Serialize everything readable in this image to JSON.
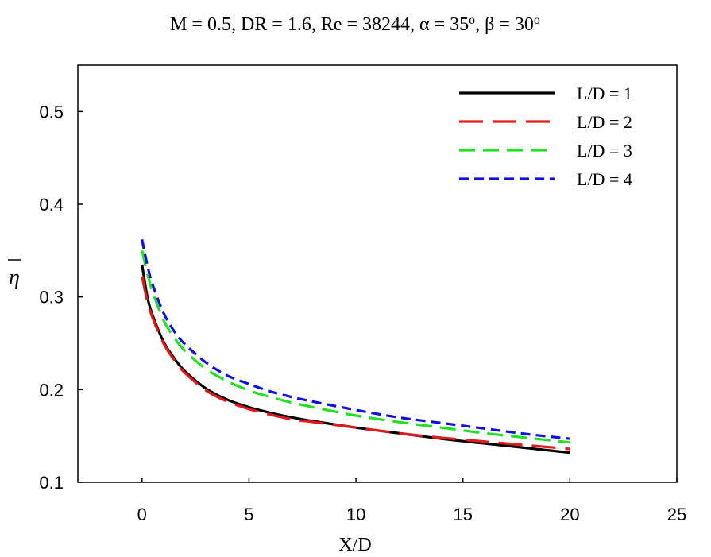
{
  "chart_data": {
    "type": "line",
    "title": {
      "parts": [
        {
          "text": "M = 0.5, DR = 1.6, Re = 38244, ",
          "sup": false
        },
        {
          "text": "α = 35",
          "sup": false
        },
        {
          "text": "o",
          "sup": true
        },
        {
          "text": ", ",
          "sup": false
        },
        {
          "text": "β = 30",
          "sup": false
        },
        {
          "text": "o",
          "sup": true
        }
      ]
    },
    "xlabel": "X/D",
    "ylabel": "η",
    "xlim": [
      -3,
      25
    ],
    "ylim": [
      0.1,
      0.55
    ],
    "xticks": [
      0,
      5,
      10,
      15,
      20,
      25
    ],
    "yticks": [
      0.1,
      0.2,
      0.3,
      0.4,
      0.5
    ],
    "xtick_labels": [
      "0",
      "5",
      "10",
      "15",
      "20",
      "25"
    ],
    "ytick_labels": [
      "0.1",
      "0.2",
      "0.3",
      "0.4",
      "0.5"
    ],
    "grid": false,
    "legend_position": "top-right",
    "series": [
      {
        "name": "L/D = 1",
        "color": "#000000",
        "dash": "solid",
        "x": [
          0,
          0.25,
          0.5,
          1,
          1.5,
          2,
          3,
          4,
          5,
          6,
          7,
          8,
          10,
          12,
          14,
          16,
          18,
          20
        ],
        "y": [
          0.335,
          0.3,
          0.28,
          0.252,
          0.234,
          0.22,
          0.201,
          0.189,
          0.181,
          0.175,
          0.17,
          0.166,
          0.159,
          0.153,
          0.147,
          0.142,
          0.137,
          0.132
        ]
      },
      {
        "name": "L/D = 2",
        "color": "#e31a1c",
        "dash": "long",
        "x": [
          0,
          0.25,
          0.5,
          1,
          1.5,
          2,
          3,
          4,
          5,
          6,
          7,
          8,
          10,
          12,
          14,
          16,
          18,
          20
        ],
        "y": [
          0.322,
          0.295,
          0.277,
          0.25,
          0.232,
          0.218,
          0.199,
          0.187,
          0.179,
          0.173,
          0.168,
          0.165,
          0.159,
          0.153,
          0.148,
          0.144,
          0.14,
          0.136
        ]
      },
      {
        "name": "L/D = 3",
        "color": "#22e022",
        "dash": "medium",
        "x": [
          0,
          0.25,
          0.5,
          1,
          1.5,
          2,
          3,
          4,
          5,
          6,
          7,
          8,
          10,
          12,
          14,
          16,
          18,
          20
        ],
        "y": [
          0.35,
          0.325,
          0.305,
          0.275,
          0.256,
          0.242,
          0.222,
          0.209,
          0.199,
          0.192,
          0.186,
          0.181,
          0.172,
          0.165,
          0.159,
          0.153,
          0.148,
          0.143
        ]
      },
      {
        "name": "L/D = 4",
        "color": "#1010e0",
        "dash": "short",
        "x": [
          0,
          0.25,
          0.5,
          1,
          1.5,
          2,
          3,
          4,
          5,
          6,
          7,
          8,
          10,
          12,
          14,
          16,
          18,
          20
        ],
        "y": [
          0.362,
          0.334,
          0.313,
          0.283,
          0.263,
          0.249,
          0.229,
          0.215,
          0.206,
          0.198,
          0.192,
          0.187,
          0.178,
          0.17,
          0.164,
          0.158,
          0.152,
          0.147
        ]
      }
    ]
  }
}
